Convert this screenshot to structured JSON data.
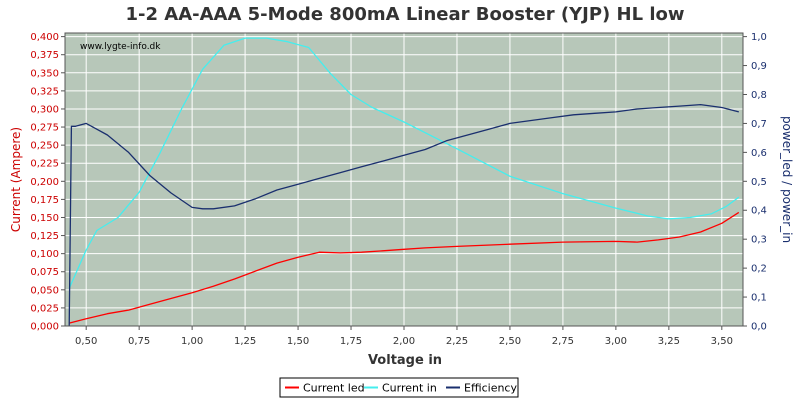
{
  "chart_data": {
    "type": "line",
    "title": "1-2 AA-AAA 5-Mode 800mA Linear Booster (YJP) HL low",
    "watermark": "www.lygte-info.dk",
    "xlabel": "Voltage in",
    "ylabel_left": "Current (Ampere)",
    "ylabel_right": "power_led / power_in",
    "xlim": [
      0.4,
      3.6
    ],
    "ylim_left": [
      0,
      0.405
    ],
    "ylim_right": [
      0,
      1.0125
    ],
    "x_ticks": [
      0.5,
      0.75,
      1.0,
      1.25,
      1.5,
      1.75,
      2.0,
      2.25,
      2.5,
      2.75,
      3.0,
      3.25,
      3.5
    ],
    "x_tick_labels": [
      "0,50",
      "0,75",
      "1,00",
      "1,25",
      "1,50",
      "1,75",
      "2,00",
      "2,25",
      "2,50",
      "2,75",
      "3,00",
      "3,25",
      "3,50"
    ],
    "y_left_ticks": [
      0,
      0.025,
      0.05,
      0.075,
      0.1,
      0.125,
      0.15,
      0.175,
      0.2,
      0.225,
      0.25,
      0.275,
      0.3,
      0.325,
      0.35,
      0.375,
      0.4
    ],
    "y_left_tick_labels": [
      "0,000",
      "0,025",
      "0,050",
      "0,075",
      "0,100",
      "0,125",
      "0,150",
      "0,175",
      "0,200",
      "0,225",
      "0,250",
      "0,275",
      "0,300",
      "0,325",
      "0,350",
      "0,375",
      "0,400"
    ],
    "y_right_ticks": [
      0,
      0.1,
      0.2,
      0.3,
      0.4,
      0.5,
      0.6,
      0.7,
      0.8,
      0.9,
      1.0
    ],
    "y_right_tick_labels": [
      "0,0",
      "0,1",
      "0,2",
      "0,3",
      "0,4",
      "0,5",
      "0,6",
      "0,7",
      "0,8",
      "0,9",
      "1,0"
    ],
    "grid": true,
    "legend_position": "bottom-center",
    "colors": {
      "plot_bg": "#b7c7b9",
      "grid": "#ffffff",
      "current_led": "#ff0000",
      "current_in": "#44eeee",
      "efficiency": "#1a2f6e",
      "left_axis_text": "#cc0000",
      "right_axis_text": "#1a2f6e"
    },
    "series": [
      {
        "name": "Current led",
        "axis": "left",
        "color": "#ff0000",
        "x": [
          0.42,
          0.5,
          0.6,
          0.7,
          0.8,
          0.9,
          1.0,
          1.1,
          1.2,
          1.3,
          1.4,
          1.5,
          1.6,
          1.7,
          1.8,
          1.9,
          2.0,
          2.1,
          2.25,
          2.5,
          2.75,
          3.0,
          3.1,
          3.2,
          3.3,
          3.4,
          3.5,
          3.58
        ],
        "y": [
          0.004,
          0.01,
          0.017,
          0.022,
          0.03,
          0.038,
          0.046,
          0.055,
          0.065,
          0.076,
          0.087,
          0.095,
          0.102,
          0.101,
          0.102,
          0.104,
          0.106,
          0.108,
          0.11,
          0.113,
          0.116,
          0.117,
          0.116,
          0.119,
          0.123,
          0.13,
          0.142,
          0.157
        ]
      },
      {
        "name": "Current in",
        "axis": "left",
        "color": "#44eeee",
        "x": [
          0.42,
          0.5,
          0.55,
          0.65,
          0.75,
          0.85,
          0.95,
          1.05,
          1.15,
          1.25,
          1.35,
          1.45,
          1.55,
          1.65,
          1.75,
          1.85,
          2.0,
          2.25,
          2.5,
          2.75,
          3.0,
          3.15,
          3.25,
          3.35,
          3.45,
          3.52,
          3.58
        ],
        "y": [
          0.052,
          0.105,
          0.132,
          0.15,
          0.185,
          0.24,
          0.3,
          0.355,
          0.388,
          0.398,
          0.398,
          0.393,
          0.385,
          0.35,
          0.32,
          0.302,
          0.282,
          0.245,
          0.207,
          0.183,
          0.163,
          0.152,
          0.148,
          0.15,
          0.155,
          0.165,
          0.178
        ]
      },
      {
        "name": "Efficiency",
        "axis": "right",
        "color": "#1a2f6e",
        "x": [
          0.42,
          0.43,
          0.45,
          0.5,
          0.55,
          0.6,
          0.7,
          0.8,
          0.9,
          1.0,
          1.05,
          1.1,
          1.2,
          1.3,
          1.4,
          1.5,
          1.6,
          1.7,
          1.8,
          1.9,
          2.0,
          2.1,
          2.2,
          2.3,
          2.4,
          2.5,
          2.6,
          2.7,
          2.8,
          2.9,
          3.0,
          3.1,
          3.2,
          3.3,
          3.4,
          3.5,
          3.58
        ],
        "y": [
          0.0,
          0.69,
          0.69,
          0.7,
          0.68,
          0.66,
          0.6,
          0.52,
          0.46,
          0.41,
          0.405,
          0.405,
          0.415,
          0.44,
          0.47,
          0.49,
          0.51,
          0.53,
          0.55,
          0.57,
          0.59,
          0.61,
          0.64,
          0.66,
          0.68,
          0.7,
          0.71,
          0.72,
          0.73,
          0.735,
          0.74,
          0.75,
          0.755,
          0.76,
          0.765,
          0.755,
          0.74
        ]
      }
    ]
  }
}
